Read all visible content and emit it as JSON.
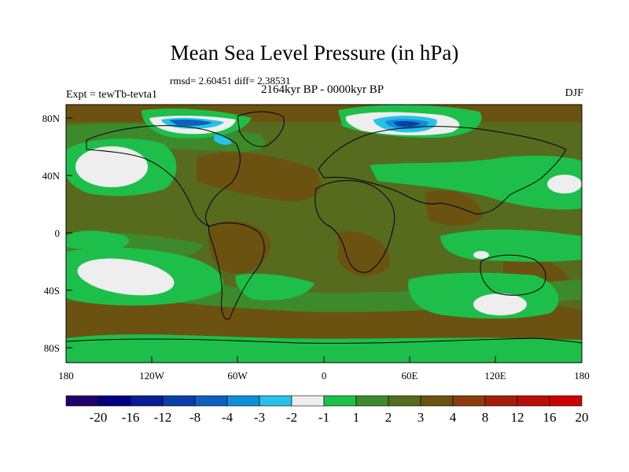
{
  "title": "Mean Sea Level Pressure (in hPa)",
  "stats": "rmsd= 2.60451 diff= 2.38531",
  "period": "2164kyr BP - 0000kyr BP",
  "experiment": "Expt = tewTb-tevta1",
  "season": "DJF",
  "lat_ticks": [
    "80N",
    "40N",
    "0",
    "40S",
    "80S"
  ],
  "lon_ticks": [
    "180",
    "120W",
    "60W",
    "0",
    "60E",
    "120E",
    "180"
  ],
  "colorbar": {
    "colors": [
      "#24006b",
      "#00007f",
      "#0a1d94",
      "#0c3ea8",
      "#0f5fbf",
      "#0f8fd8",
      "#27c1e8",
      "#eeeeee",
      "#1dbf4a",
      "#3d8a2c",
      "#566b1e",
      "#6b5210",
      "#8c3a0e",
      "#a41e0c",
      "#b80f0a",
      "#cc0000"
    ],
    "labels": [
      "-20",
      "-16",
      "-12",
      "-8",
      "-4",
      "-3",
      "-2",
      "-1",
      "1",
      "2",
      "3",
      "4",
      "8",
      "12",
      "16",
      "20"
    ]
  },
  "colors": {
    "base_field": "#566b1e",
    "light_green": "#1dbf4a",
    "mid_green": "#3d8a2c",
    "brown": "#6b5210",
    "near_zero": "#eeeeee",
    "blue": "#0f8fd8",
    "cyan": "#27c1e8",
    "dark_blue": "#0c3ea8"
  }
}
